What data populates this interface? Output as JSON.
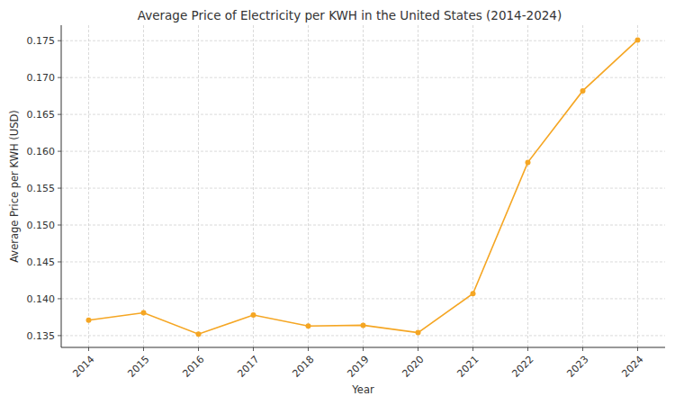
{
  "chart_data": {
    "type": "line",
    "title": "Average Price of Electricity per KWH in the United States (2014-2024)",
    "x_label": "Year",
    "y_label": "Average Price per KWH (USD)",
    "categories": [
      "2014",
      "2015",
      "2016",
      "2017",
      "2018",
      "2019",
      "2020",
      "2021",
      "2022",
      "2023",
      "2024"
    ],
    "values": [
      0.1371,
      0.1381,
      0.1352,
      0.1378,
      0.1363,
      0.1364,
      0.1354,
      0.1407,
      0.1585,
      0.1682,
      0.1751
    ],
    "color": "#f5a623",
    "marker": "circle",
    "line_style": "solid",
    "ylim": [
      0.1334,
      0.1771
    ],
    "yticks": [
      0.135,
      {
        "value": 0.14,
        "label": "0.140"
      },
      0.145,
      {
        "value": 0.15,
        "label": "0.150"
      },
      0.155,
      {
        "value": 0.16,
        "label": "0.160"
      },
      0.165,
      {
        "value": 0.17,
        "label": "0.170"
      },
      0.175
    ],
    "grid": true
  }
}
